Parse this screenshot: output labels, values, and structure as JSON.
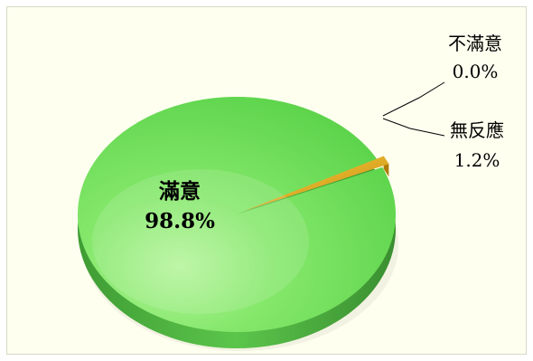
{
  "chart_data": {
    "type": "pie",
    "style": "3d",
    "slices": [
      {
        "label": "滿意",
        "value": 98.8,
        "value_text": "98.8%",
        "color": "#66dd55"
      },
      {
        "label": "無反應",
        "value": 1.2,
        "value_text": "1.2%",
        "color": "#f2b81c"
      },
      {
        "label": "不滿意",
        "value": 0.0,
        "value_text": "0.0%",
        "color": "#d04040"
      }
    ],
    "background": "#fffff0"
  }
}
